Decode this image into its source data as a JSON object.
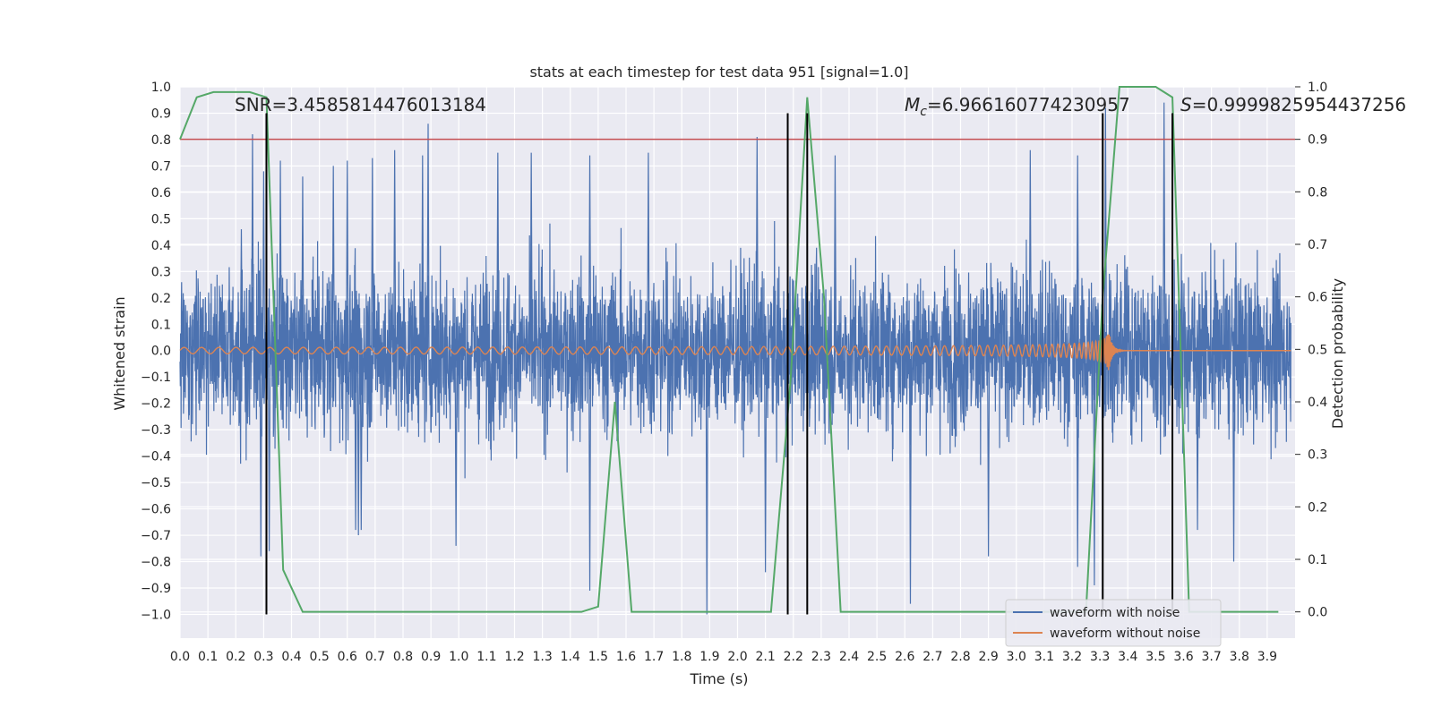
{
  "chart_data": {
    "type": "line",
    "title": "stats at each timestep for test data 951 [signal=1.0]",
    "xlabel": "Time (s)",
    "ylabel": "Whitened strain",
    "y2label": "Detection probability",
    "xlim": [
      0.0,
      4.0
    ],
    "ylim": [
      -1.09,
      1.0
    ],
    "y2lim": [
      -0.05,
      1.0
    ],
    "x_ticks": [
      0.0,
      0.1,
      0.2,
      0.3,
      0.4,
      0.5,
      0.6,
      0.7,
      0.8,
      0.9,
      1.0,
      1.1,
      1.2,
      1.3,
      1.4,
      1.5,
      1.6,
      1.7,
      1.8,
      1.9,
      2.0,
      2.1,
      2.2,
      2.3,
      2.4,
      2.5,
      2.6,
      2.7,
      2.8,
      2.9,
      3.0,
      3.1,
      3.2,
      3.3,
      3.4,
      3.5,
      3.6,
      3.7,
      3.8,
      3.9
    ],
    "x_tick_labels": [
      "0.0",
      "0.1",
      "0.2",
      "0.3",
      "0.4",
      "0.5",
      "0.6",
      "0.7",
      "0.8",
      "0.9",
      "1.0",
      "1.1",
      "1.2",
      "1.3",
      "1.4",
      "1.5",
      "1.6",
      "1.7",
      "1.8",
      "1.9",
      "2.0",
      "2.1",
      "2.2",
      "2.3",
      "2.4",
      "2.5",
      "2.6",
      "2.7",
      "2.8",
      "2.9",
      "3.0",
      "3.1",
      "3.2",
      "3.3",
      "3.4",
      "3.5",
      "3.6",
      "3.7",
      "3.8",
      "3.9"
    ],
    "y_ticks": [
      -1.0,
      -0.9,
      -0.8,
      -0.7,
      -0.6,
      -0.5,
      -0.4,
      -0.3,
      -0.2,
      -0.1,
      0.0,
      0.1,
      0.2,
      0.3,
      0.4,
      0.5,
      0.6,
      0.7,
      0.8,
      0.9,
      1.0
    ],
    "y_tick_labels": [
      "−1.0",
      "−0.9",
      "−0.8",
      "−0.7",
      "−0.6",
      "−0.5",
      "−0.4",
      "−0.3",
      "−0.2",
      "−0.1",
      "0.0",
      "0.1",
      "0.2",
      "0.3",
      "0.4",
      "0.5",
      "0.6",
      "0.7",
      "0.8",
      "0.9",
      "1.0"
    ],
    "y2_ticks": [
      0.0,
      0.1,
      0.2,
      0.3,
      0.4,
      0.5,
      0.6,
      0.7,
      0.8,
      0.9,
      1.0
    ],
    "y2_tick_labels": [
      "0.0",
      "0.1",
      "0.2",
      "0.3",
      "0.4",
      "0.5",
      "0.6",
      "0.7",
      "0.8",
      "0.9",
      "1.0"
    ],
    "annotations": {
      "snr": "SNR=3.4585814476013184",
      "mc_symbol": "M",
      "mc_sub": "c",
      "mc_value": "=6.966160774230957",
      "s_symbol": "S",
      "s_value": "=0.9999825954437256"
    },
    "threshold_y2": 0.9,
    "vertical_markers_x": [
      0.31,
      2.18,
      2.25,
      3.31,
      3.56
    ],
    "vertical_marker_y": [
      -1.0,
      0.9
    ],
    "series": [
      {
        "name": "waveform with noise",
        "color": "#4c72b0",
        "description_type": "noise",
        "amplitude": 0.36,
        "spikes": [
          [
            0.22,
            0.46
          ],
          [
            0.26,
            0.82
          ],
          [
            0.3,
            0.68
          ],
          [
            0.36,
            0.72
          ],
          [
            0.44,
            0.66
          ],
          [
            0.55,
            0.7
          ],
          [
            0.6,
            0.72
          ],
          [
            0.69,
            0.73
          ],
          [
            0.77,
            0.76
          ],
          [
            0.87,
            0.74
          ],
          [
            0.89,
            0.86
          ],
          [
            1.14,
            0.75
          ],
          [
            1.26,
            0.75
          ],
          [
            1.47,
            0.74
          ],
          [
            1.68,
            0.75
          ],
          [
            2.07,
            0.81
          ],
          [
            2.35,
            0.74
          ],
          [
            3.05,
            0.76
          ],
          [
            3.32,
            0.92
          ],
          [
            3.53,
            0.94
          ],
          [
            3.22,
            0.74
          ],
          [
            0.29,
            -0.78
          ],
          [
            0.32,
            -0.76
          ],
          [
            0.65,
            -0.68
          ],
          [
            0.63,
            -0.68
          ],
          [
            0.64,
            -0.7
          ],
          [
            1.47,
            -0.91
          ],
          [
            1.89,
            -1.0
          ],
          [
            2.1,
            -0.84
          ],
          [
            2.62,
            -0.96
          ],
          [
            3.22,
            -0.82
          ],
          [
            3.28,
            -0.89
          ],
          [
            3.78,
            -0.8
          ],
          [
            0.99,
            -0.74
          ],
          [
            2.9,
            -0.78
          ],
          [
            3.65,
            -0.68
          ]
        ]
      },
      {
        "name": "waveform without noise",
        "color": "#dd8452",
        "description_type": "chirp",
        "merger_time": 3.33,
        "amplitude_start": 0.012,
        "amplitude_merger": 0.09
      },
      {
        "name": "detection probability",
        "color": "#55a868",
        "axis": "y2",
        "x": [
          0.0,
          0.06,
          0.12,
          0.19,
          0.25,
          0.31,
          0.37,
          0.44,
          0.5,
          0.56,
          0.62,
          0.69,
          0.75,
          0.81,
          0.87,
          0.94,
          1.0,
          1.06,
          1.12,
          1.19,
          1.25,
          1.31,
          1.37,
          1.44,
          1.5,
          1.56,
          1.62,
          1.69,
          1.75,
          1.81,
          1.87,
          1.94,
          2.0,
          2.06,
          2.12,
          2.19,
          2.25,
          2.31,
          2.37,
          2.44,
          2.5,
          2.56,
          2.62,
          2.69,
          2.75,
          2.81,
          2.87,
          2.94,
          3.0,
          3.06,
          3.12,
          3.19,
          3.25,
          3.31,
          3.37,
          3.44,
          3.5,
          3.56,
          3.62,
          3.69,
          3.75,
          3.81,
          3.87,
          3.94
        ],
        "values": [
          0.9,
          0.98,
          0.99,
          0.99,
          0.99,
          0.98,
          0.08,
          0.0,
          0.0,
          0.0,
          0.0,
          0.0,
          0.0,
          0.0,
          0.0,
          0.0,
          0.0,
          0.0,
          0.0,
          0.0,
          0.0,
          0.0,
          0.0,
          0.0,
          0.01,
          0.4,
          0.0,
          0.0,
          0.0,
          0.0,
          0.0,
          0.0,
          0.0,
          0.0,
          0.0,
          0.44,
          0.98,
          0.6,
          0.0,
          0.0,
          0.0,
          0.0,
          0.0,
          0.0,
          0.0,
          0.0,
          0.0,
          0.0,
          0.0,
          0.0,
          0.0,
          0.0,
          0.0,
          0.6,
          1.0,
          1.0,
          1.0,
          0.98,
          0.0,
          0.0,
          0.0,
          0.0,
          0.0,
          0.0
        ]
      }
    ],
    "threshold_color": "#c44e52",
    "legend": {
      "placement": "bottom-right",
      "entries": [
        "waveform with noise",
        "waveform without noise"
      ]
    },
    "background_color": "#eaeaf2",
    "grid": true
  }
}
